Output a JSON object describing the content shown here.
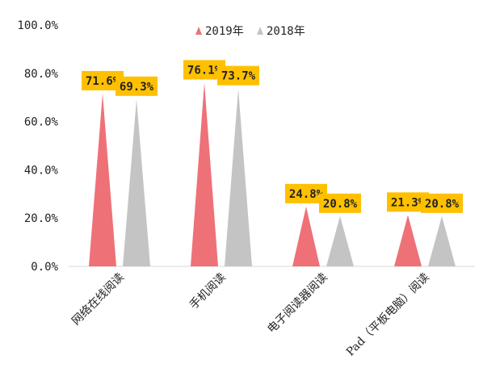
{
  "chart_data": {
    "type": "bar",
    "mark_shape": "triangle",
    "categories": [
      "网络在线阅读",
      "手机阅读",
      "电子阅读器阅读",
      "Pad（平板电脑）阅读"
    ],
    "series": [
      {
        "name": "2019年",
        "color": "#ee7178",
        "values": [
          71.6,
          76.1,
          24.8,
          21.3
        ]
      },
      {
        "name": "2018年",
        "color": "#c4c4c4",
        "values": [
          69.3,
          73.7,
          20.8,
          20.8
        ]
      }
    ],
    "data_labels": [
      [
        "71.6%",
        "76.1%",
        "24.8%",
        "21.3%"
      ],
      [
        "69.3%",
        "73.7%",
        "20.8%",
        "20.8%"
      ]
    ],
    "y_ticks": [
      "0.0%",
      "20.0%",
      "40.0%",
      "60.0%",
      "80.0%",
      "100.0%"
    ],
    "ylim": [
      0,
      100
    ],
    "grid": false,
    "legend_position": "top-center",
    "label_box_color": "#ffc000",
    "title": "",
    "xlabel": "",
    "ylabel": ""
  }
}
